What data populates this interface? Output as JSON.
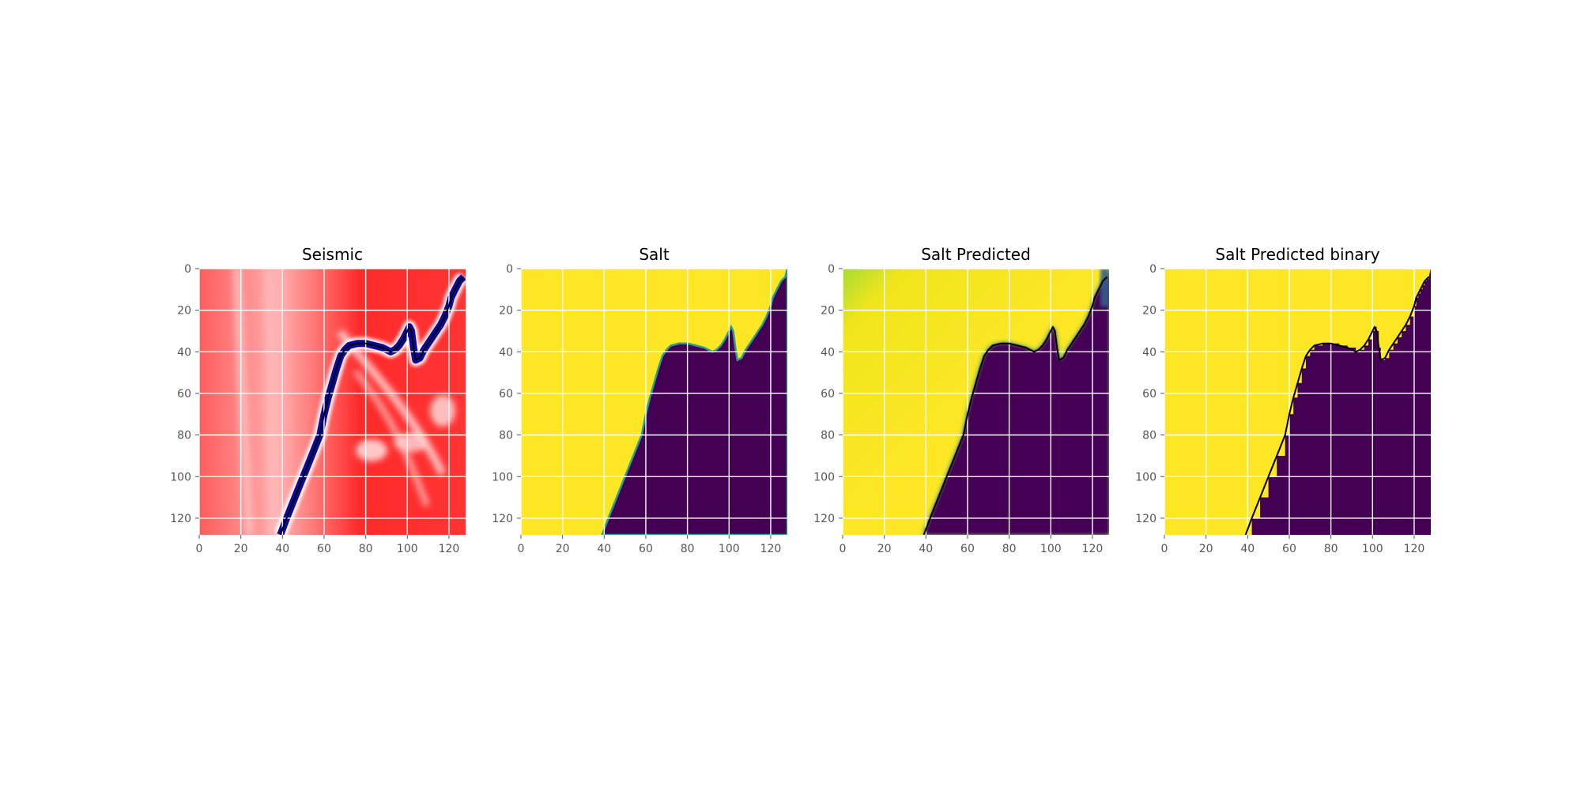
{
  "chart_data": [
    {
      "type": "heatmap",
      "title": "Seismic",
      "colormap": "seismic",
      "xlim": [
        0,
        128
      ],
      "ylim": [
        128,
        0
      ],
      "xticks": [
        0,
        20,
        40,
        60,
        80,
        100,
        120
      ],
      "yticks": [
        0,
        20,
        40,
        60,
        80,
        100,
        120
      ],
      "grid": true,
      "contour": true,
      "style": "seismic"
    },
    {
      "type": "heatmap",
      "title": "Salt",
      "colormap": "viridis",
      "xlim": [
        0,
        128
      ],
      "ylim": [
        128,
        0
      ],
      "xticks": [
        0,
        20,
        40,
        60,
        80,
        100,
        120
      ],
      "yticks": [
        0,
        20,
        40,
        60,
        80,
        100,
        120
      ],
      "grid": true,
      "contour": false,
      "style": "mask"
    },
    {
      "type": "heatmap",
      "title": "Salt Predicted",
      "colormap": "viridis",
      "xlim": [
        0,
        128
      ],
      "ylim": [
        128,
        0
      ],
      "xticks": [
        0,
        20,
        40,
        60,
        80,
        100,
        120
      ],
      "yticks": [
        0,
        20,
        40,
        60,
        80,
        100,
        120
      ],
      "grid": true,
      "contour": true,
      "style": "soft"
    },
    {
      "type": "heatmap",
      "title": "Salt Predicted binary",
      "colormap": "viridis",
      "xlim": [
        0,
        128
      ],
      "ylim": [
        128,
        0
      ],
      "xticks": [
        0,
        20,
        40,
        60,
        80,
        100,
        120
      ],
      "yticks": [
        0,
        20,
        40,
        60,
        80,
        100,
        120
      ],
      "grid": true,
      "contour": true,
      "style": "binary"
    }
  ],
  "boundary": {
    "x": [
      39,
      42,
      46,
      50,
      54,
      58,
      60,
      62,
      64,
      66,
      68,
      70,
      72,
      76,
      80,
      84,
      88,
      92,
      94,
      96,
      98,
      100,
      101,
      102,
      103,
      104,
      106,
      108,
      110,
      112,
      114,
      116,
      118,
      120,
      121,
      122,
      123,
      124,
      125,
      126,
      127
    ],
    "y": [
      128,
      120,
      110,
      100,
      90,
      80,
      70,
      62,
      55,
      48,
      42,
      39,
      37,
      36,
      36,
      37,
      38,
      40,
      39,
      37,
      34,
      30,
      28,
      30,
      38,
      44,
      43,
      39,
      36,
      33,
      30,
      27,
      23,
      18,
      14,
      12,
      10,
      8,
      6,
      5,
      4
    ]
  },
  "colors": {
    "salt_region": "#fde725",
    "sediment_region": "#440154",
    "seismic_red": "#ff0000",
    "seismic_blue": "#00008b",
    "seismic_white": "#ffffff"
  }
}
